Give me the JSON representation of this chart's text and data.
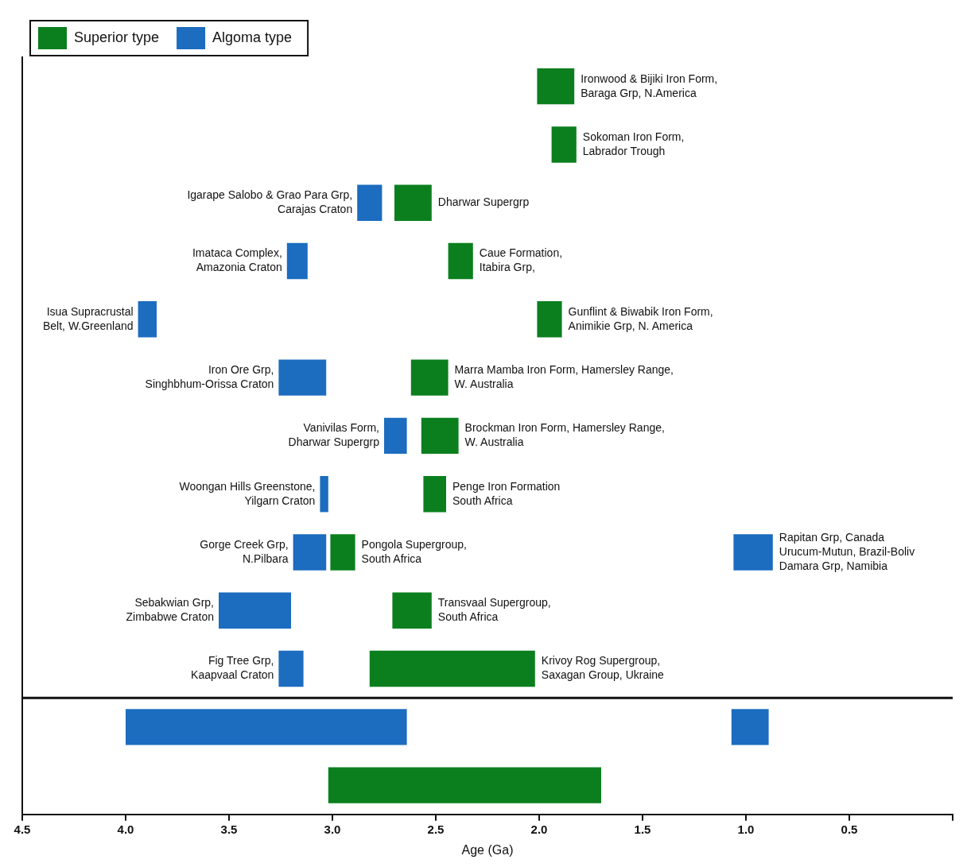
{
  "chart_data": {
    "type": "bar",
    "orientation": "horizontal",
    "categories": [
      null,
      null,
      null,
      null,
      null,
      null,
      null,
      null,
      null,
      null,
      null,
      null,
      null
    ],
    "xlim": [
      4.5,
      0
    ],
    "xticks": [
      4.5,
      {
        "value": 4,
        "label": "4.0"
      },
      3.5,
      {
        "value": 3,
        "label": "3.0"
      },
      2.5,
      {
        "value": 2,
        "label": "2.0"
      },
      1.5,
      {
        "value": 1,
        "label": "1.0"
      },
      0.5,
      {
        "value": 0,
        "label": null
      }
    ],
    "xlabel": "Age (Ga)",
    "tick_labels": "x",
    "grid": false,
    "legend": "top left",
    "series": [
      {
        "name": "Superior type",
        "color": "#0b7f1e",
        "base": [
          1.83,
          1.82,
          2.52,
          2.32,
          1.89,
          2.44,
          2.39,
          2.45,
          2.89,
          2.52,
          2.02,
          null,
          1.7
        ],
        "values": [
          0.18,
          0.12,
          0.18,
          0.12,
          0.12,
          0.18,
          0.18,
          0.11,
          0.12,
          0.19,
          0.8,
          null,
          1.32
        ],
        "value_labels": [
          "Ironwood & Bijiki Iron Form,\nBaraga Grp, N.America",
          "Sokoman Iron Form,\nLabrador Trough",
          "Dharwar Supergrp",
          "Caue Formation,\nItabira Grp,",
          "Gunflint & Biwabik Iron Form,\nAnimikie Grp, N. America",
          "Marra Mamba Iron Form, Hamersley Range,\nW. Australia",
          "Brockman Iron Form, Hamersley Range,\nW. Australia",
          "Penge Iron Formation\nSouth Africa",
          "Pongola Supergroup,\nSouth Africa",
          "Transvaal Supergroup,\nSouth Africa",
          "Krivoy Rog Supergroup,\nSaxagan Group, Ukraine",
          null,
          null
        ]
      },
      {
        "name": "Algoma type",
        "color": "#1c6cbf",
        "base": [
          null,
          null,
          2.76,
          3.12,
          3.85,
          3.03,
          2.64,
          3.02,
          3.03,
          3.2,
          3.14,
          2.64,
          null
        ],
        "values": [
          null,
          null,
          0.12,
          0.1,
          0.09,
          0.23,
          0.11,
          0.04,
          0.16,
          0.35,
          0.12,
          1.36,
          null
        ],
        "value_labels": [
          null,
          null,
          "Igarape Salobo & Grao Para Grp,\nCarajas Craton",
          "Imataca Complex,\nAmazonia Craton",
          "Isua Supracrustal\nBelt, W.Greenland",
          "Iron Ore Grp,\nSinghbhum-Orissa Craton",
          "Vanivilas Form,\nDharwar Supergrp",
          "Woongan Hills Greenstone,\nYilgarn Craton",
          "Gorge Creek Grp,\nN.Pilbara",
          "Sebakwian Grp,\nZimbabwe Craton",
          "Fig Tree Grp,\nKaapvaal Craton",
          null,
          null
        ]
      },
      {
        "color": "#1c6cbf",
        "base": [
          null,
          null,
          null,
          null,
          null,
          null,
          null,
          null,
          0.87,
          null,
          null,
          0.89,
          null
        ],
        "values": [
          null,
          null,
          null,
          null,
          null,
          null,
          null,
          null,
          0.19,
          null,
          null,
          0.18,
          null
        ],
        "value_labels": [
          null,
          null,
          null,
          null,
          null,
          null,
          null,
          null,
          "Rapitan Grp, Canada\nUrucum-Mutun, Brazil-Boliv\nDamara Grp, Namibia",
          null,
          null,
          null,
          null
        ]
      }
    ]
  }
}
